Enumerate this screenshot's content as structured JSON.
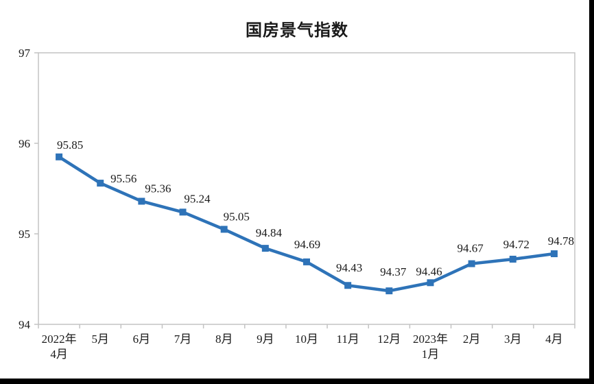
{
  "page": {
    "background": "#ffffff"
  },
  "chart_data": {
    "type": "line",
    "title": "国房景气指数",
    "categories": [
      "2022年\n4月",
      "5月",
      "6月",
      "7月",
      "8月",
      "9月",
      "10月",
      "11月",
      "12月",
      "2023年\n1月",
      "2月",
      "3月",
      "4月"
    ],
    "values": [
      95.85,
      95.56,
      95.36,
      95.24,
      95.05,
      94.84,
      94.69,
      94.43,
      94.37,
      94.46,
      94.67,
      94.72,
      94.78
    ],
    "data_labels": [
      "95.85",
      "95.56",
      "95.36",
      "95.24",
      "95.05",
      "94.84",
      "94.69",
      "94.43",
      "94.37",
      "94.46",
      "94.67",
      "94.72",
      "94.78"
    ],
    "xlabel": "",
    "ylabel": "",
    "ylim": [
      94,
      97
    ],
    "yticks": [
      94,
      95,
      96,
      97
    ],
    "grid": false,
    "legend_position": "none",
    "marker": "square",
    "colors": {
      "line": "#2e73b8",
      "marker": "#2e73b8",
      "axis": "#c3c3c3",
      "text": "#1a1a1a"
    }
  }
}
